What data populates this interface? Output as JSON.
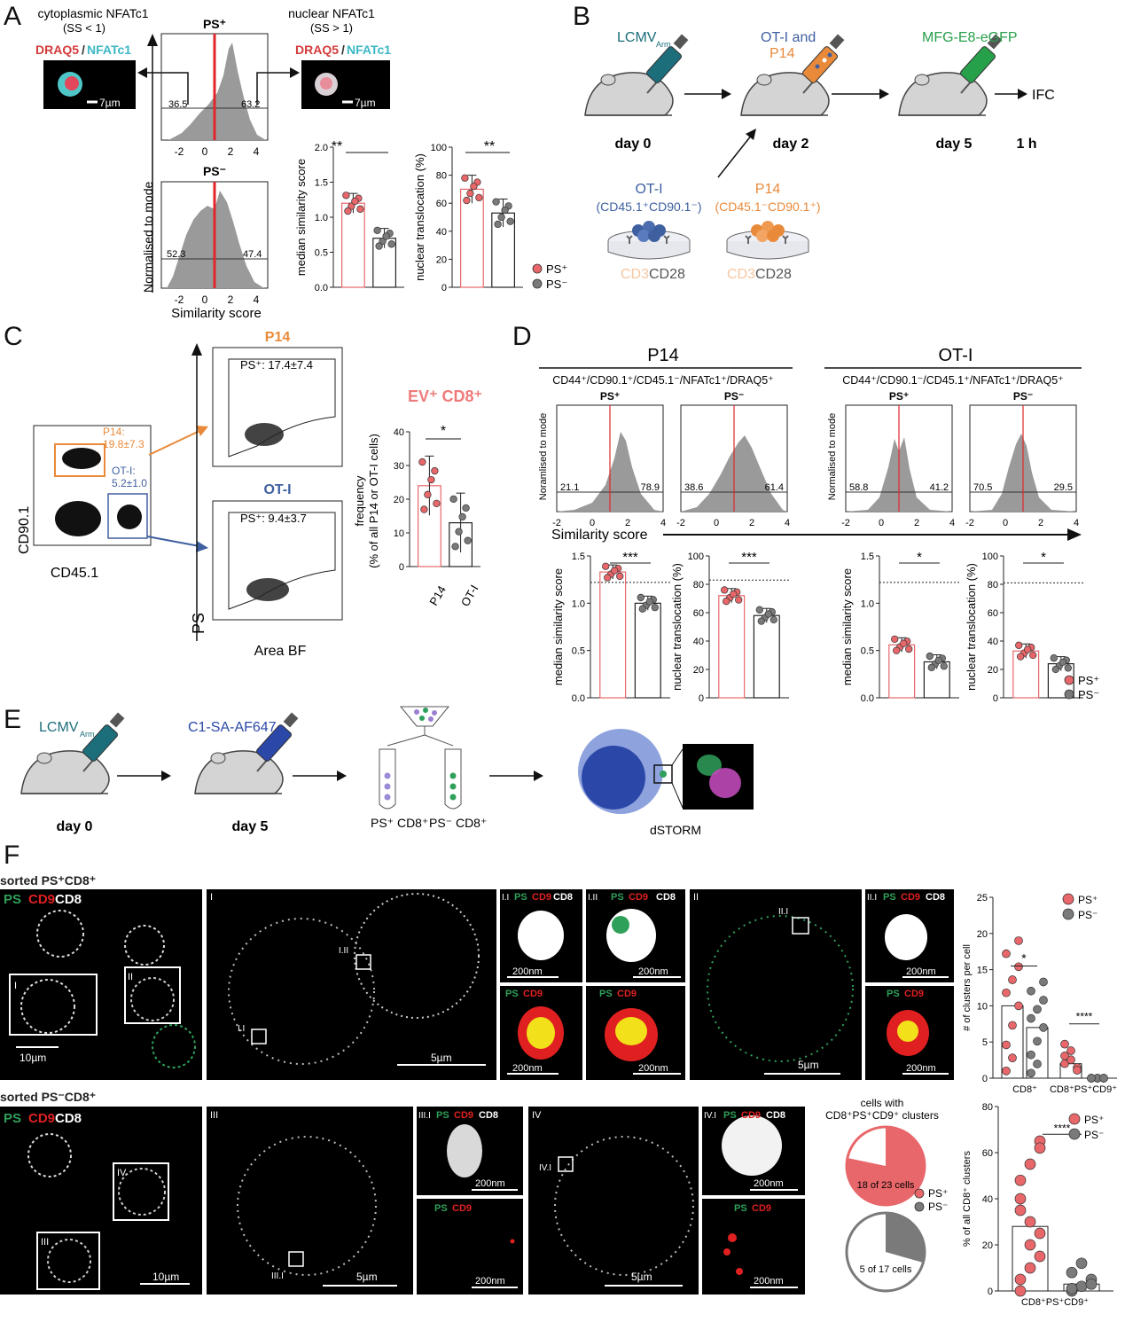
{
  "panel_labels": {
    "a": "A",
    "b": "B",
    "c": "C",
    "d": "D",
    "e": "E",
    "f": "F"
  },
  "colors": {
    "ps_pos": "#e8676a",
    "ps_neg": "#7a7a7a",
    "hist_fill": "#9a9a9a",
    "red_line": "#e0262b",
    "ot1_blue": "#3e5fa0",
    "p14_orange": "#e98a3a",
    "ev_pink": "#ee7b7b",
    "lcmv_teal": "#1c6e7a",
    "mfg_green": "#27a04a",
    "dark_blue": "#2b48a8",
    "light_blue": "#8ea2dd"
  },
  "a": {
    "cyto_title": "cytoplasmic NFATc1",
    "cyto_sub": "(SS < 1)",
    "nuc_title": "nuclear NFATc1",
    "nuc_sub": "(SS > 1)",
    "draq5": "DRAQ5",
    "slash": "/",
    "nfatc1": "NFATc1",
    "scale": "7µm",
    "ps_pos_label": "PS⁺",
    "ps_neg_label": "PS⁻",
    "hist_pos_left": "36.5",
    "hist_pos_right": "63.2",
    "hist_neg_left": "52.3",
    "hist_neg_right": "47.4",
    "ylabel": "Normalised to mode",
    "xlabel": "Similarity score",
    "xticks": [
      "-2",
      "0",
      "2",
      "4"
    ],
    "bar1_ylabel": "median similarity score",
    "bar1_ticks": [
      "0.0",
      "0.5",
      "1.0",
      "1.5",
      "2.0"
    ],
    "bar2_ylabel": "nuclear translocation (%)",
    "bar2_ticks": [
      "0",
      "20",
      "40",
      "60",
      "80",
      "100"
    ],
    "sig": "**",
    "legend_pos": "PS⁺",
    "legend_neg": "PS⁻"
  },
  "b": {
    "lcmv": "LCMV",
    "arm": "Arm",
    "ot1_and": "OT-I and",
    "p14": "P14",
    "mfg": "MFG-E8-eGFP",
    "ifc": "IFC",
    "day0": "day 0",
    "day2": "day 2",
    "day5": "day 5",
    "oneh": "1 h",
    "ot1_title": "OT-I",
    "ot1_markers": "(CD45.1⁺CD90.1⁻)",
    "p14_title": "P14",
    "p14_markers": "(CD45.1⁻CD90.1⁺)",
    "cd3": "CD3",
    "cd28": "CD28"
  },
  "c": {
    "ylabel_cd90": "CD90.1",
    "xlabel_cd45": "CD45.1",
    "p14_gate": "P14:",
    "p14_gate_val": "19.8±7.3",
    "ot1_gate": "OT-I:",
    "ot1_gate_val": "5.2±1.0",
    "p14_title": "P14",
    "ot1_title": "OT-I",
    "p14_ps": "PS⁺: 17.4±7.4",
    "ot1_ps": "PS⁺: 9.4±3.7",
    "ps_axis": "PS",
    "area_bf": "Area BF",
    "ev_title": "EV⁺ CD8⁺",
    "freq_label1": "frequency",
    "freq_label2": "(% of all P14 or OT-I cells)",
    "freq_ticks": [
      "0",
      "10",
      "20",
      "30",
      "40"
    ],
    "cat_p14": "P14",
    "cat_ot1": "OT-I",
    "sig": "*"
  },
  "d": {
    "p14_title": "P14",
    "ot1_title": "OT-I",
    "p14_gate": "CD44⁺/CD90.1⁺/CD45.1⁻/NFATc1⁺/DRAQ5⁺",
    "ot1_gate": "CD44⁺/CD90.1⁻/CD45.1⁺/NFATc1⁺/DRAQ5⁺",
    "ps_pos": "PS⁺",
    "ps_neg": "PS⁻",
    "hist_vals": [
      [
        "21.1",
        "78.9"
      ],
      [
        "38.6",
        "61.4"
      ],
      [
        "58.8",
        "41.2"
      ],
      [
        "70.5",
        "29.5"
      ]
    ],
    "ylabel_hist": "Noramlised to mode",
    "ylabel_hist2": "Normalised to mode",
    "xlabel": "Similarity score",
    "xticks": [
      "-2",
      "0",
      "2",
      "4"
    ],
    "bar_ms_label": "median similarity score",
    "bar_nt_label": "nuclear translocation (%)",
    "ms_ticks": [
      "0.0",
      "0.5",
      "1.0",
      "1.5"
    ],
    "nt_ticks": [
      "0",
      "20",
      "40",
      "60",
      "80",
      "100"
    ],
    "sig3": "***",
    "sig1": "*",
    "legend_pos": "PS⁺",
    "legend_neg": "PS⁻"
  },
  "e": {
    "lcmv": "LCMV",
    "arm": "Arm",
    "c1": "C1-SA-AF647",
    "day0": "day 0",
    "day5": "day 5",
    "tube_pos": "PS⁺ CD8⁺",
    "tube_neg": "PS⁻ CD8⁺",
    "dstorm": "dSTORM"
  },
  "f": {
    "sorted_pos": "sorted PS⁺CD8⁺",
    "sorted_neg": "sorted PS⁻CD8⁺",
    "ps": "PS",
    "cd9": "CD9",
    "cd8": "CD8",
    "roman": [
      "I",
      "II",
      "III",
      "IV"
    ],
    "sub_labels": [
      "I.I",
      "I.II",
      "II.I",
      "III.I",
      "IV.I"
    ],
    "scale_10": "10µm",
    "scale_5": "5µm",
    "scale_200": "200nm",
    "clusters_ylabel": "# of clusters per cell",
    "clusters_ticks": [
      "0",
      "5",
      "10",
      "15",
      "20",
      "25"
    ],
    "cat_cd8": "CD8⁺",
    "cat_cd8ps": "CD8⁺PS⁺CD9⁺",
    "sig1": "*",
    "sig4": "****",
    "legend_pos": "PS⁺",
    "legend_neg": "PS⁻",
    "pie_title1": "cells with",
    "pie_title2": "CD8⁺PS⁺CD9⁺ clusters",
    "pie1_label": "18 of 23 cells",
    "pie2_label": "5 of 17 cells",
    "pct_ylabel": "% of all CD8⁺ clusters",
    "pct_ticks": [
      "0",
      "20",
      "40",
      "60",
      "80"
    ]
  },
  "chart_data": [
    {
      "type": "bar",
      "panel": "A",
      "ylabel": "median similarity score",
      "categories": [
        "PS⁺",
        "PS⁻"
      ],
      "values": [
        1.2,
        0.7
      ],
      "ylim": [
        0,
        2.0
      ]
    },
    {
      "type": "bar",
      "panel": "A",
      "ylabel": "nuclear translocation (%)",
      "categories": [
        "PS⁺",
        "PS⁻"
      ],
      "values": [
        70,
        53
      ],
      "ylim": [
        0,
        100
      ]
    },
    {
      "type": "bar",
      "panel": "C",
      "ylabel": "frequency (% of all P14 or OT-I cells)",
      "categories": [
        "P14",
        "OT-I"
      ],
      "values": [
        24,
        13
      ],
      "ylim": [
        0,
        40
      ]
    },
    {
      "type": "bar",
      "panel": "D",
      "ylabel": "median similarity score",
      "categories": [
        "PS⁺",
        "PS⁻"
      ],
      "values": [
        1.33,
        1.0
      ],
      "ylim": [
        0,
        1.5
      ]
    },
    {
      "type": "bar",
      "panel": "D",
      "ylabel": "nuclear translocation (%)",
      "categories": [
        "PS⁺",
        "PS⁻"
      ],
      "values": [
        72,
        58
      ],
      "ylim": [
        0,
        100
      ]
    },
    {
      "type": "bar",
      "panel": "D",
      "ylabel": "median similarity score",
      "categories": [
        "PS⁺",
        "PS⁻"
      ],
      "values": [
        0.56,
        0.38
      ],
      "ylim": [
        0,
        1.5
      ]
    },
    {
      "type": "bar",
      "panel": "D",
      "ylabel": "nuclear translocation (%)",
      "categories": [
        "PS⁺",
        "PS⁻"
      ],
      "values": [
        33,
        24
      ],
      "ylim": [
        0,
        100
      ]
    },
    {
      "type": "bar",
      "panel": "F",
      "ylabel": "# of clusters per cell",
      "categories": [
        "CD8⁺",
        "CD8⁺PS⁺CD9⁺"
      ],
      "series": [
        {
          "name": "PS⁺",
          "values": [
            10,
            2
          ]
        },
        {
          "name": "PS⁻",
          "values": [
            7,
            0
          ]
        }
      ],
      "ylim": [
        0,
        25
      ]
    },
    {
      "type": "pie",
      "panel": "F",
      "labels": [
        "PS⁺",
        "PS⁻"
      ],
      "values": [
        18,
        5
      ],
      "totals": [
        23,
        17
      ]
    },
    {
      "type": "bar",
      "panel": "F",
      "ylabel": "% of all CD8⁺ clusters",
      "categories": [
        "CD8⁺PS⁺CD9⁺"
      ],
      "series": [
        {
          "name": "PS⁺",
          "values": [
            28
          ]
        },
        {
          "name": "PS⁻",
          "values": [
            3
          ]
        }
      ],
      "ylim": [
        0,
        80
      ]
    }
  ]
}
